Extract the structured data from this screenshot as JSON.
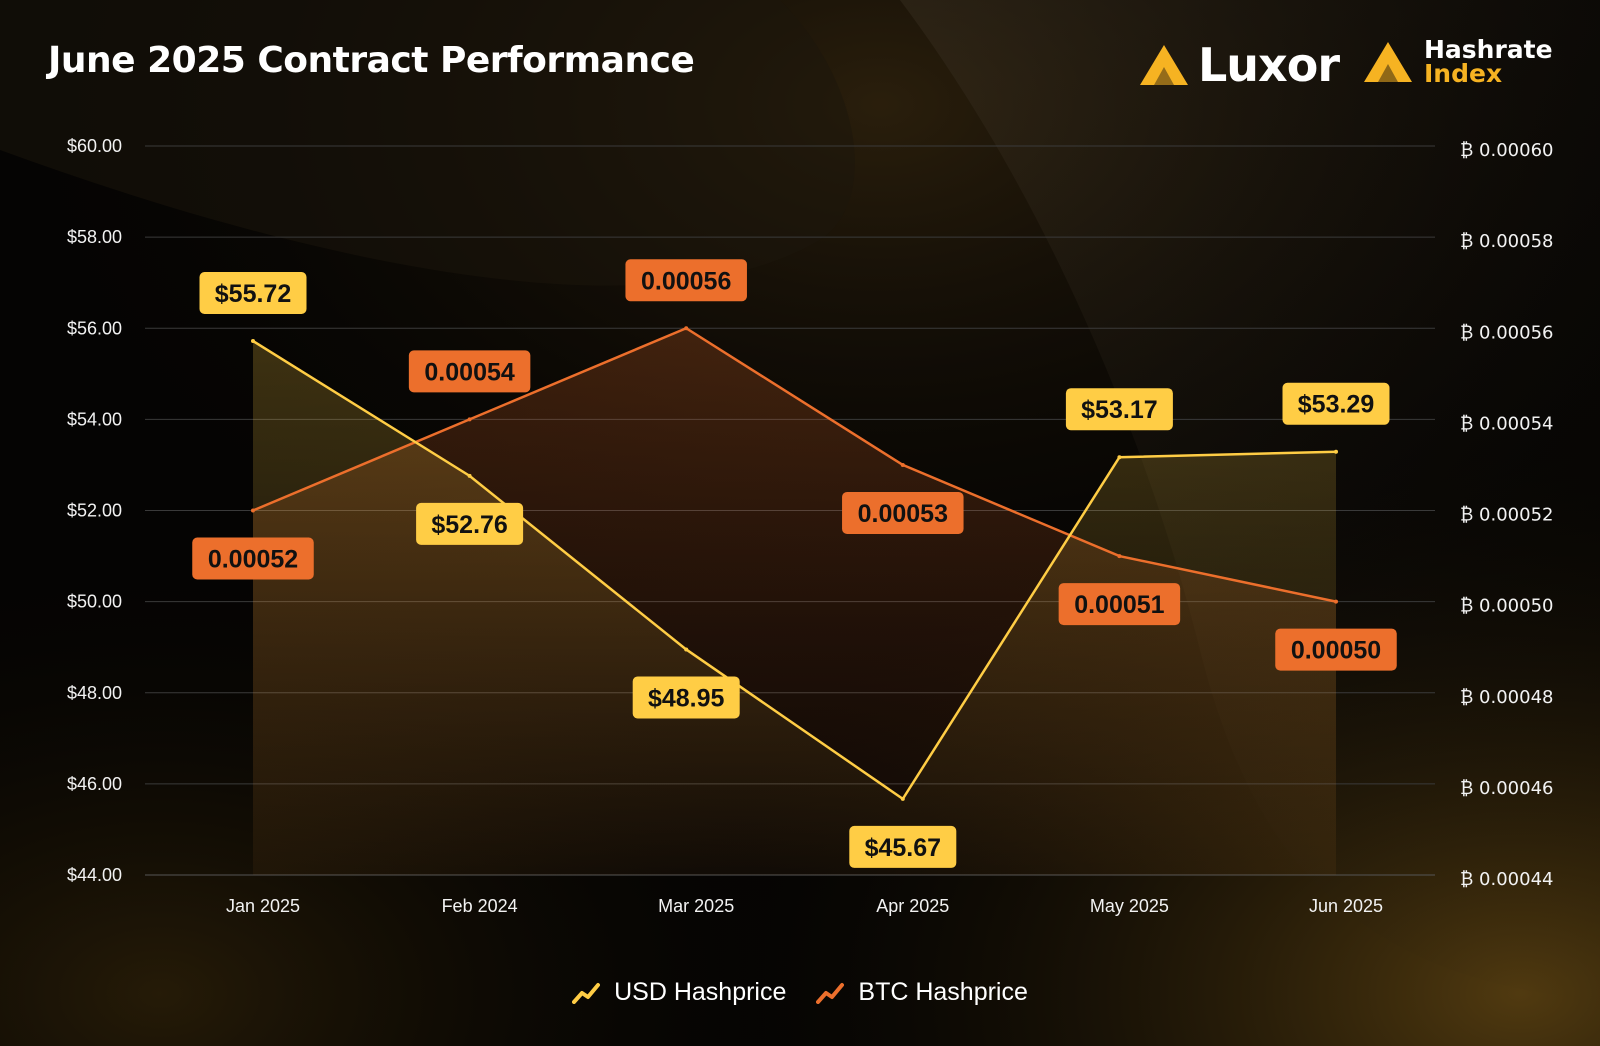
{
  "header": {
    "title": "June 2025 Contract Performance",
    "brand_luxor": "Luxor",
    "brand_hri_line1": "Hashrate",
    "brand_hri_line2": "Index"
  },
  "colors": {
    "usd": "#ffcd45",
    "btc": "#ec6f2c",
    "accent": "#f6b322",
    "grid": "#3a3a3a",
    "label_text": "#111111"
  },
  "legend": [
    {
      "label": "USD Hashprice",
      "icon": "trend-up-icon",
      "color": "#ffcd45"
    },
    {
      "label": "BTC Hashprice",
      "icon": "trend-up-icon",
      "color": "#ec6f2c"
    }
  ],
  "chart_data": {
    "type": "line",
    "title": "June 2025 Contract Performance",
    "categories": [
      "Jan 2025",
      "Feb 2024",
      "Mar 2025",
      "Apr 2025",
      "May 2025",
      "Jun 2025"
    ],
    "series": [
      {
        "name": "USD Hashprice",
        "axis": "left",
        "values": [
          55.72,
          52.76,
          48.95,
          45.67,
          53.17,
          53.29
        ],
        "labels": [
          "$55.72",
          "$52.76",
          "$48.95",
          "$45.67",
          "$53.17",
          "$53.29"
        ]
      },
      {
        "name": "BTC Hashprice",
        "axis": "right",
        "values": [
          0.00052,
          0.00054,
          0.00056,
          0.00053,
          0.00051,
          0.0005
        ],
        "labels": [
          "0.00052",
          "0.00054",
          "0.00056",
          "0.00053",
          "0.00051",
          "0.00050"
        ]
      }
    ],
    "y_left": {
      "ylim": [
        44,
        60
      ],
      "ticks": [
        "$44.00",
        "$46.00",
        "$48.00",
        "$50.00",
        "$52.00",
        "$54.00",
        "$56.00",
        "$58.00",
        "$60.00"
      ]
    },
    "y_right": {
      "ylim": [
        0.00044,
        0.0006
      ],
      "ticks": [
        "₿ 0.00044",
        "₿ 0.00046",
        "₿ 0.00048",
        "₿ 0.00050",
        "₿ 0.00052",
        "₿ 0.00054",
        "₿ 0.00056",
        "₿ 0.00058",
        "₿ 0.00060"
      ]
    },
    "grid": true,
    "legend_position": "bottom-center"
  }
}
